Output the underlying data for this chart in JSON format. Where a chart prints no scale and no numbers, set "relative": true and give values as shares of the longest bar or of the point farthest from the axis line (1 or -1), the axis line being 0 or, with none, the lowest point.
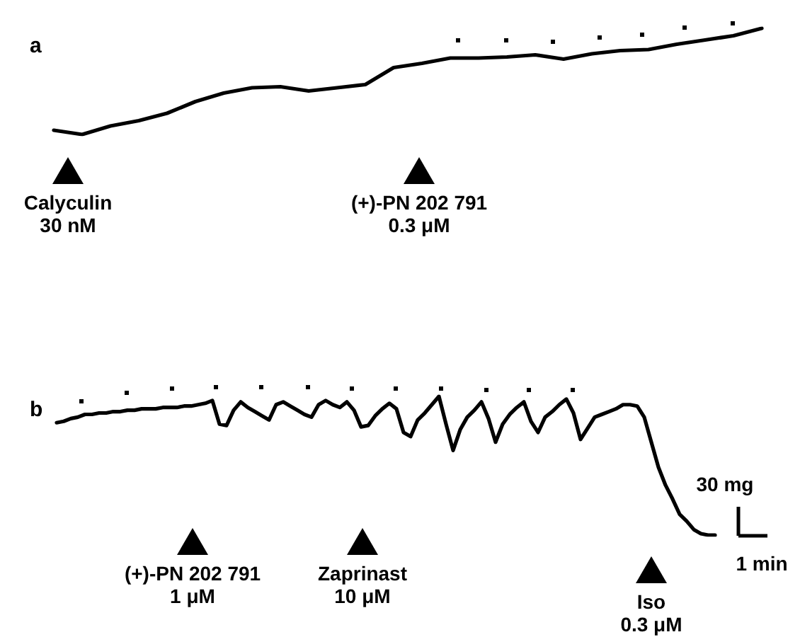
{
  "chart_data": [
    {
      "type": "line",
      "title": "a",
      "relative": true,
      "marker": "none",
      "categories": [
        null,
        null,
        null,
        null,
        null,
        null,
        null,
        null,
        null,
        null,
        null,
        null,
        null,
        null,
        null,
        null,
        null,
        null,
        null,
        null,
        null,
        null,
        null,
        null,
        null,
        null
      ],
      "series": [
        {
          "color": "#000000",
          "values": [
            0.04,
            0,
            0.08,
            0.13,
            0.2,
            0.31,
            0.39,
            0.44,
            0.45,
            0.41,
            0.44,
            0.47,
            0.63,
            0.67,
            0.72,
            0.72,
            0.73,
            0.75,
            0.71,
            0.76,
            0.79,
            0.8,
            0.85,
            0.89,
            0.93,
            1
          ]
        }
      ],
      "annotations": [
        "Calyculin\n30 nM",
        "(+)-PN 202 791\n0.3 μM"
      ]
    },
    {
      "type": "line",
      "title": "b",
      "relative": true,
      "marker": "none",
      "categories": [
        null,
        null,
        null,
        null,
        null,
        null,
        null,
        null,
        null,
        null,
        null,
        null,
        null,
        null,
        null,
        null,
        null,
        null,
        null,
        null,
        null,
        null,
        null,
        null,
        null,
        null,
        null,
        null,
        null,
        null,
        null,
        null,
        null,
        null,
        null,
        null,
        null,
        null,
        null,
        null,
        null,
        null,
        null,
        null,
        null,
        null,
        null,
        null,
        null,
        null,
        null,
        null,
        null,
        null,
        null,
        null,
        null,
        null,
        null,
        null,
        null,
        null,
        null,
        null,
        null,
        null,
        null,
        null,
        null,
        null,
        null,
        null,
        null,
        null,
        null,
        null,
        null,
        null,
        null,
        null,
        null,
        null,
        null,
        null,
        null,
        null,
        null,
        null,
        null,
        null,
        null,
        null,
        null,
        null
      ],
      "series": [
        {
          "color": "#000000",
          "values": [
            0.81,
            0.82,
            0.84,
            0.85,
            0.87,
            0.87,
            0.88,
            0.88,
            0.89,
            0.89,
            0.9,
            0.9,
            0.91,
            0.91,
            0.91,
            0.92,
            0.92,
            0.92,
            0.93,
            0.93,
            0.94,
            0.95,
            0.97,
            0.8,
            0.79,
            0.9,
            0.96,
            0.92,
            0.89,
            0.86,
            0.83,
            0.94,
            0.96,
            0.93,
            0.9,
            0.87,
            0.85,
            0.94,
            0.97,
            0.94,
            0.92,
            0.96,
            0.9,
            0.78,
            0.79,
            0.86,
            0.91,
            0.95,
            0.91,
            0.74,
            0.71,
            0.83,
            0.88,
            0.94,
            1,
            0.8,
            0.61,
            0.76,
            0.85,
            0.9,
            0.96,
            0.84,
            0.67,
            0.8,
            0.87,
            0.92,
            0.96,
            0.82,
            0.74,
            0.85,
            0.89,
            0.94,
            0.98,
            0.88,
            0.69,
            0.77,
            0.85,
            0.87,
            0.89,
            0.91,
            0.94,
            0.94,
            0.93,
            0.85,
            0.67,
            0.49,
            0.36,
            0.26,
            0.15,
            0.1,
            0.04,
            0.01,
            0,
            0
          ]
        }
      ],
      "annotations": [
        "(+)-PN 202 791\n1 μM",
        "Zaprinast\n10 μM",
        "Iso\n0.3 μM",
        "30 mg",
        "1 min"
      ]
    }
  ]
}
